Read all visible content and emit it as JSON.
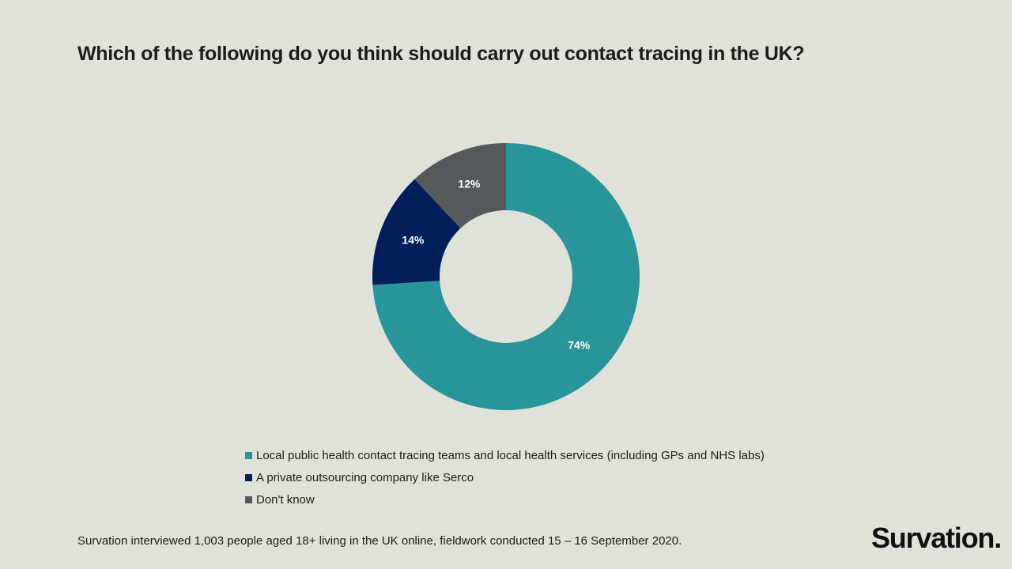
{
  "title": "Which of the following do you think should carry out contact tracing in the UK?",
  "chart_data": {
    "type": "pie",
    "style": "donut",
    "categories": [
      "Local public health contact tracing teams and local health services (including GPs and NHS labs)",
      "A private outsourcing company like Serco",
      "Don't know"
    ],
    "values": [
      74,
      14,
      12
    ],
    "data_labels": [
      "74%",
      "14%",
      "12%"
    ],
    "colors": [
      "#27959a",
      "#001f5b",
      "#55595c"
    ],
    "legend_position": "bottom"
  },
  "footnote": "Survation interviewed 1,003 people aged 18+ living in the UK online, fieldwork conducted 15 – 16 September 2020.",
  "brand": "Survation."
}
